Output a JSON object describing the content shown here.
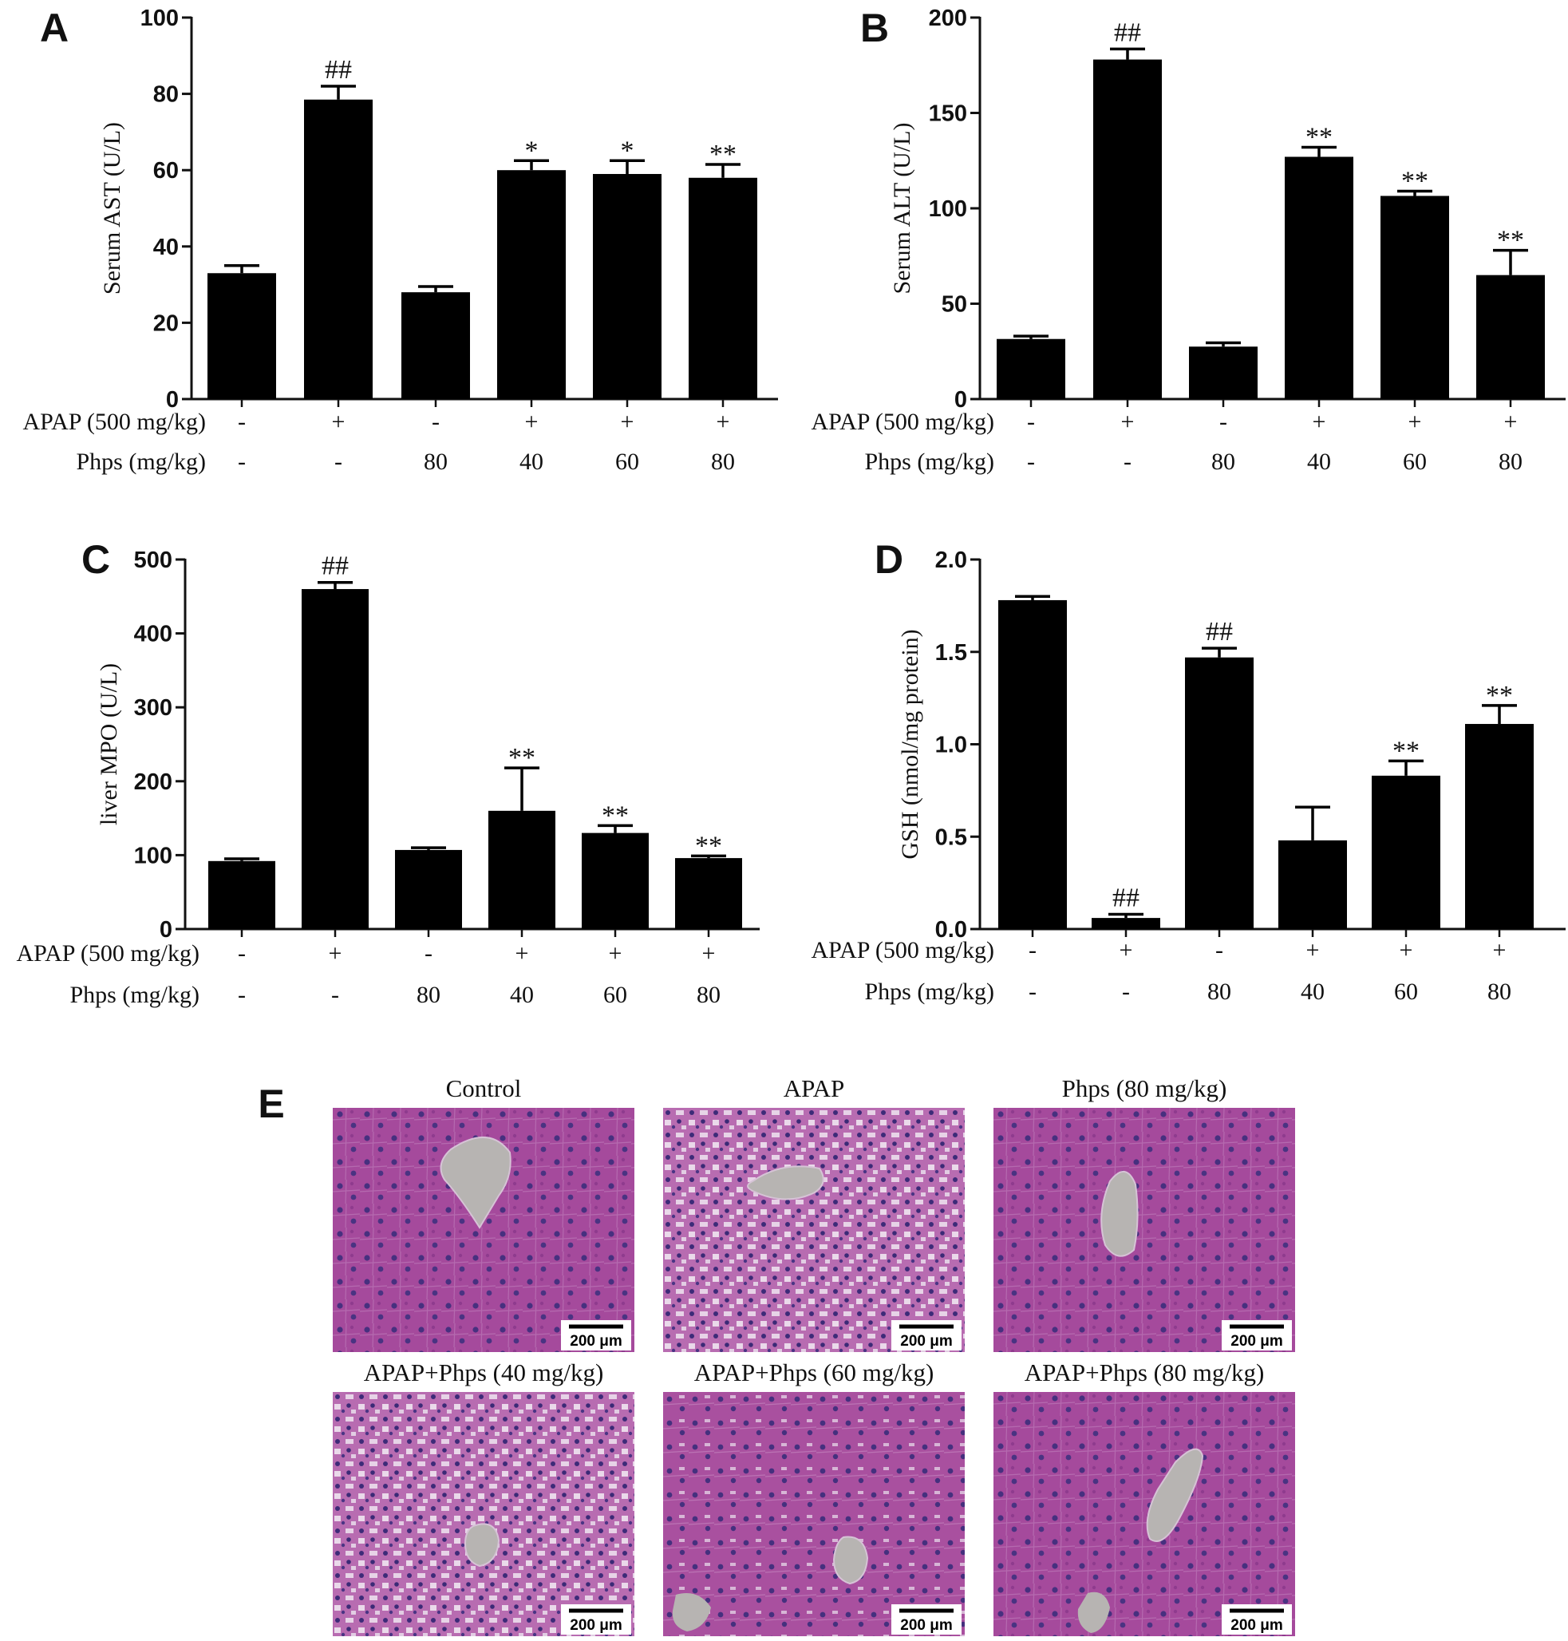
{
  "chart_data": [
    {
      "type": "bar",
      "panel": "A",
      "ylabel": "Serum AST (U/L)",
      "ylim": [
        0,
        100
      ],
      "yticks": [
        "0",
        "20",
        "40",
        "60",
        "80",
        "100"
      ],
      "categories": [
        "1",
        "2",
        "3",
        "4",
        "5",
        "6"
      ],
      "values": [
        33,
        78.5,
        28,
        60,
        59,
        58
      ],
      "errors": [
        2,
        3.5,
        1.5,
        2.5,
        3.5,
        3.5
      ],
      "annotations": [
        "",
        "##",
        "",
        "*",
        "*",
        "**"
      ],
      "row_labels": [
        "APAP (500 mg/kg)",
        "Phps (mg/kg)"
      ],
      "apap": [
        "-",
        "+",
        "-",
        "+",
        "+",
        "+"
      ],
      "phps": [
        "-",
        "-",
        "80",
        "40",
        "60",
        "80"
      ]
    },
    {
      "type": "bar",
      "panel": "B",
      "ylabel": "Serum ALT (U/L)",
      "ylim": [
        0,
        200
      ],
      "yticks": [
        "0",
        "50",
        "100",
        "150",
        "200"
      ],
      "categories": [
        "1",
        "2",
        "3",
        "4",
        "5",
        "6"
      ],
      "values": [
        31.5,
        178,
        27.5,
        127,
        106.5,
        65
      ],
      "errors": [
        1.5,
        5.5,
        2,
        5,
        2.5,
        13
      ],
      "annotations": [
        "",
        "##",
        "",
        "**",
        "**",
        "**"
      ],
      "row_labels": [
        "APAP (500 mg/kg)",
        "Phps (mg/kg)"
      ],
      "apap": [
        "-",
        "+",
        "-",
        "+",
        "+",
        "+"
      ],
      "phps": [
        "-",
        "-",
        "80",
        "40",
        "60",
        "80"
      ]
    },
    {
      "type": "bar",
      "panel": "C",
      "ylabel": "liver MPO (U/L)",
      "ylim": [
        0,
        500
      ],
      "yticks": [
        "0",
        "100",
        "200",
        "300",
        "400",
        "500"
      ],
      "categories": [
        "1",
        "2",
        "3",
        "4",
        "5",
        "6"
      ],
      "values": [
        92,
        460,
        107,
        160,
        130,
        96
      ],
      "errors": [
        3,
        9,
        3,
        58,
        10,
        3
      ],
      "annotations": [
        "",
        "##",
        "",
        "**",
        "**",
        "**"
      ],
      "row_labels": [
        "APAP (500 mg/kg)",
        "Phps (mg/kg)"
      ],
      "apap": [
        "-",
        "+",
        "-",
        "+",
        "+",
        "+"
      ],
      "phps": [
        "-",
        "-",
        "80",
        "40",
        "60",
        "80"
      ]
    },
    {
      "type": "bar",
      "panel": "D",
      "ylabel": "GSH (nmol/mg protein)",
      "ylim": [
        0,
        2
      ],
      "yticks": [
        "0.0",
        "0.5",
        "1.0",
        "1.5",
        "2.0"
      ],
      "categories": [
        "1",
        "2",
        "3",
        "4",
        "5",
        "6"
      ],
      "values": [
        1.78,
        0.06,
        1.47,
        0.48,
        0.83,
        1.11
      ],
      "errors": [
        0.02,
        0.02,
        0.05,
        0.18,
        0.08,
        0.1
      ],
      "annotations": [
        "",
        "##",
        "##",
        "",
        "**",
        "**"
      ],
      "row_labels": [
        "APAP (500 mg/kg)",
        "Phps (mg/kg)"
      ],
      "apap": [
        "-",
        "+",
        "-",
        "+",
        "+",
        "+"
      ],
      "phps": [
        "-",
        "-",
        "80",
        "40",
        "60",
        "80"
      ]
    }
  ],
  "histology": {
    "panel": "E",
    "scale_bar": "200 μm",
    "images": [
      {
        "title": "Control",
        "tissue": "normal"
      },
      {
        "title": "APAP",
        "tissue": "damaged"
      },
      {
        "title": "Phps (80 mg/kg)",
        "tissue": "normal"
      },
      {
        "title": "APAP+Phps (40 mg/kg)",
        "tissue": "damaged"
      },
      {
        "title": "APAP+Phps (60 mg/kg)",
        "tissue": "mild"
      },
      {
        "title": "APAP+Phps (80 mg/kg)",
        "tissue": "normal"
      }
    ]
  },
  "colors": {
    "bar": "#000000",
    "tissue_base": "#a84d9f",
    "tissue_light": "#c98bc4",
    "nucleus": "#3d2c7a",
    "vein": "#b7b4b2"
  }
}
